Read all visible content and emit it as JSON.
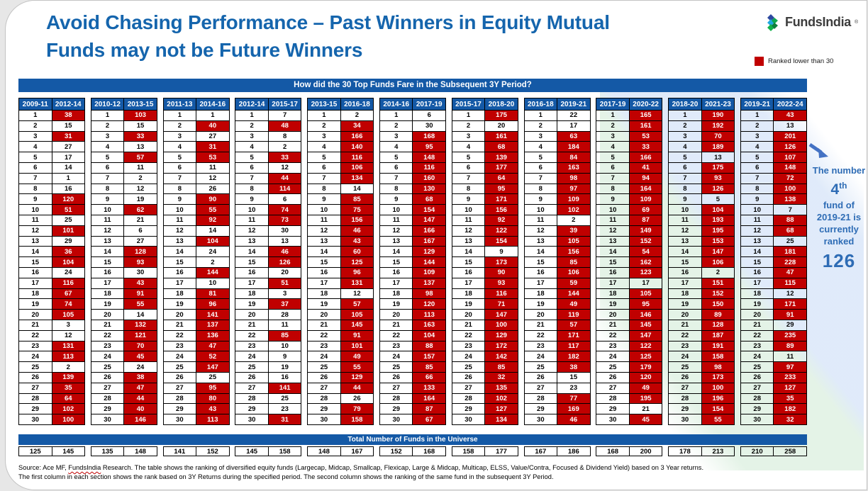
{
  "title": {
    "line1": "Avoid Chasing Performance – Past Winners in Equity Mutual",
    "line2": "Funds may not be Future Winners"
  },
  "logo": {
    "text": "FundsIndia",
    "mark": "®"
  },
  "legend": {
    "label": "Ranked lower than 30",
    "color": "#C00000",
    "threshold": 30
  },
  "banner": "How did the 30 Top Funds Fare in the Subsequent 3Y Period?",
  "totals_banner": "Total Number of Funds in the Universe",
  "callout": {
    "pre": "The number",
    "rank": "4",
    "rank_suffix": "th",
    "mid": "fund of 2019-21 is currently ranked",
    "value": "126"
  },
  "source": {
    "prefix": "Source: Ace MF, ",
    "brand": "FundsIndia",
    "rest": " Research. The table shows the ranking of diversified equity funds (Largecap, Midcap, Smallcap, Flexicap, Large & Midcap, Multicap, ELSS, Value/Contra, Focused & Dividend Yield) based on 3 Year returns.",
    "line2": "The first column in each section shows the rank based on 3Y Returns during the specified period. The second column shows the ranking of the same fund in the subsequent 3Y Period."
  },
  "colors": {
    "accent_blue": "#1459A6",
    "title_blue": "#1565AD",
    "flag_red": "#C00000",
    "callout_blue": "#2E6CB5",
    "arrow_blue": "#4472C4"
  },
  "chart_data": {
    "type": "table",
    "title": "How did the 30 Top Funds Fare in the Subsequent 3Y Period?",
    "row_ranks": "1-30",
    "red_rule": "subsequent rank greater than 30",
    "groups": [
      {
        "period": "2009-11",
        "subsequent": "2012-14",
        "values": [
          38,
          15,
          31,
          27,
          17,
          14,
          1,
          16,
          120,
          51,
          25,
          101,
          29,
          36,
          104,
          24,
          116,
          67,
          74,
          105,
          3,
          12,
          131,
          113,
          2,
          139,
          35,
          64,
          102,
          100
        ],
        "totals": [
          125,
          145
        ]
      },
      {
        "period": "2010-12",
        "subsequent": "2013-15",
        "values": [
          103,
          15,
          33,
          13,
          57,
          11,
          2,
          12,
          19,
          62,
          21,
          6,
          27,
          128,
          93,
          30,
          43,
          91,
          55,
          14,
          132,
          121,
          70,
          45,
          24,
          38,
          47,
          44,
          40,
          146
        ],
        "totals": [
          135,
          148
        ]
      },
      {
        "period": "2011-13",
        "subsequent": "2014-16",
        "values": [
          1,
          40,
          27,
          31,
          53,
          11,
          12,
          26,
          90,
          55,
          92,
          14,
          104,
          24,
          2,
          144,
          10,
          81,
          96,
          141,
          137,
          136,
          47,
          52,
          147,
          25,
          95,
          80,
          43,
          113
        ],
        "totals": [
          141,
          152
        ]
      },
      {
        "period": "2012-14",
        "subsequent": "2015-17",
        "values": [
          7,
          48,
          8,
          2,
          33,
          12,
          44,
          114,
          6,
          74,
          73,
          30,
          13,
          46,
          126,
          20,
          51,
          3,
          37,
          28,
          11,
          85,
          10,
          9,
          19,
          16,
          141,
          25,
          23,
          31
        ],
        "totals": [
          145,
          158
        ]
      },
      {
        "period": "2013-15",
        "subsequent": "2016-18",
        "values": [
          2,
          34,
          166,
          140,
          116,
          106,
          134,
          14,
          85,
          75,
          156,
          46,
          43,
          60,
          125,
          96,
          131,
          12,
          57,
          105,
          145,
          91,
          101,
          49,
          55,
          129,
          44,
          26,
          79,
          158
        ],
        "totals": [
          148,
          167
        ]
      },
      {
        "period": "2014-16",
        "subsequent": "2017-19",
        "values": [
          6,
          30,
          168,
          95,
          148,
          116,
          160,
          130,
          68,
          154,
          147,
          166,
          167,
          129,
          144,
          109,
          137,
          98,
          120,
          113,
          163,
          104,
          88,
          157,
          85,
          66,
          133,
          164,
          87,
          67
        ],
        "totals": [
          152,
          168
        ]
      },
      {
        "period": "2015-17",
        "subsequent": "2018-20",
        "values": [
          175,
          20,
          161,
          68,
          139,
          177,
          64,
          95,
          171,
          156,
          92,
          122,
          154,
          9,
          173,
          90,
          93,
          116,
          71,
          147,
          100,
          129,
          172,
          142,
          85,
          32,
          135,
          102,
          127,
          134
        ],
        "totals": [
          158,
          177
        ]
      },
      {
        "period": "2016-18",
        "subsequent": "2019-21",
        "values": [
          22,
          17,
          63,
          184,
          84,
          163,
          98,
          97,
          109,
          102,
          2,
          39,
          105,
          156,
          85,
          106,
          59,
          144,
          49,
          119,
          57,
          171,
          117,
          182,
          38,
          15,
          23,
          77,
          169,
          46
        ],
        "totals": [
          167,
          186
        ]
      },
      {
        "period": "2017-19",
        "subsequent": "2020-22",
        "values": [
          165,
          161,
          53,
          33,
          166,
          41,
          94,
          164,
          109,
          69,
          87,
          149,
          152,
          54,
          162,
          123,
          17,
          105,
          95,
          146,
          145,
          147,
          122,
          125,
          179,
          120,
          49,
          195,
          21,
          45
        ],
        "totals": [
          168,
          200
        ]
      },
      {
        "period": "2018-20",
        "subsequent": "2021-23",
        "values": [
          190,
          192,
          70,
          189,
          13,
          175,
          93,
          126,
          5,
          104,
          193,
          195,
          153,
          147,
          106,
          2,
          151,
          152,
          150,
          89,
          128,
          187,
          191,
          158,
          98,
          173,
          100,
          196,
          154,
          55
        ],
        "totals": [
          178,
          213
        ]
      },
      {
        "period": "2019-21",
        "subsequent": "2022-24",
        "values": [
          43,
          13,
          201,
          126,
          107,
          148,
          72,
          100,
          138,
          7,
          88,
          68,
          25,
          181,
          228,
          47,
          115,
          12,
          171,
          91,
          29,
          235,
          89,
          11,
          97,
          233,
          127,
          35,
          182,
          32
        ],
        "totals": [
          210,
          258
        ]
      }
    ]
  }
}
